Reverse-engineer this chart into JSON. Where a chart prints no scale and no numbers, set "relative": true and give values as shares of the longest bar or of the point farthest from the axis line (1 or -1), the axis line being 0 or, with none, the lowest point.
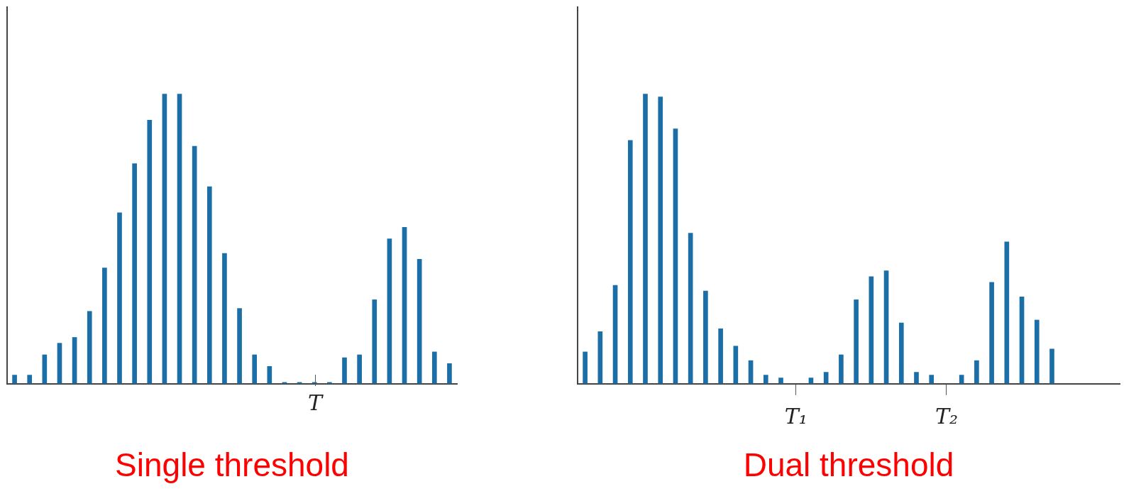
{
  "chart_data": [
    {
      "type": "bar",
      "title": "Single threshold",
      "relative": true,
      "categories": [
        null,
        null,
        null,
        null,
        null,
        null,
        null,
        null,
        null,
        null,
        null,
        null,
        null,
        null,
        null,
        null,
        null,
        null,
        null,
        null,
        null,
        null,
        null,
        null,
        null,
        null,
        null,
        null,
        null,
        null
      ],
      "values": [
        0.03,
        0.03,
        0.1,
        0.14,
        0.16,
        0.25,
        0.4,
        0.59,
        0.76,
        0.91,
        1,
        1,
        0.82,
        0.68,
        0.45,
        0.26,
        0.1,
        0.06,
        0,
        0,
        0,
        0,
        0.09,
        0.1,
        0.29,
        0.5,
        0.54,
        0.43,
        0.11,
        0.07
      ],
      "color": "#1b6ea6",
      "grid": false,
      "legend": false,
      "annotations": [
        "T"
      ]
    },
    {
      "type": "bar",
      "title": "Dual threshold",
      "relative": true,
      "categories": [
        null,
        null,
        null,
        null,
        null,
        null,
        null,
        null,
        null,
        null,
        null,
        null,
        null,
        null,
        "T₁",
        null,
        null,
        null,
        null,
        null,
        null,
        null,
        null,
        null,
        "T₂",
        null,
        null,
        null,
        null,
        null,
        null,
        null,
        null,
        null,
        null,
        null
      ],
      "values": [
        0.11,
        0.18,
        0.34,
        0.84,
        1,
        0.99,
        0.88,
        0.52,
        0.32,
        0.19,
        0.13,
        0.08,
        0.03,
        0.02,
        null,
        0.02,
        0.04,
        0.1,
        0.29,
        0.37,
        0.39,
        0.21,
        0.04,
        0.03,
        null,
        0.03,
        0.08,
        0.35,
        0.49,
        0.3,
        0.22,
        0.12,
        null,
        null,
        null,
        null
      ],
      "color": "#1b6ea6",
      "grid": false,
      "legend": false
    }
  ]
}
